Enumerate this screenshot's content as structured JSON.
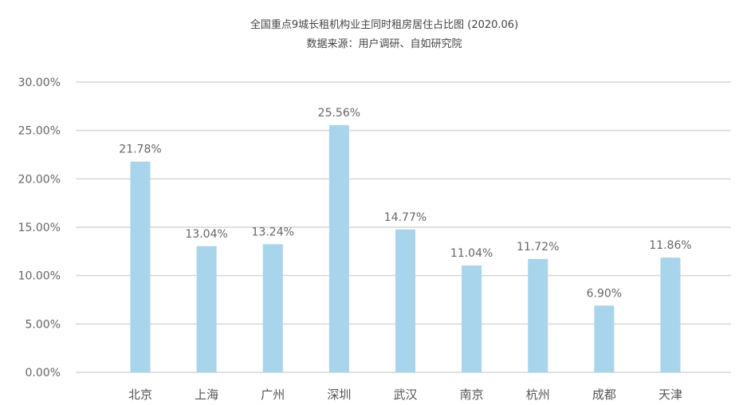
{
  "chart_data": {
    "type": "bar",
    "title": "全国重点9城长租机构业主同时租房居住占比图 (2020.06)",
    "subtitle": "数据来源：用户调研、自如研究院",
    "categories": [
      "北京",
      "上海",
      "广州",
      "深圳",
      "武汉",
      "南京",
      "杭州",
      "成都",
      "天津"
    ],
    "values": [
      21.78,
      13.04,
      13.24,
      25.56,
      14.77,
      11.04,
      11.72,
      6.9,
      11.86
    ],
    "data_labels": [
      "21.78%",
      "13.04%",
      "13.24%",
      "25.56%",
      "14.77%",
      "11.04%",
      "11.72%",
      "6.90%",
      "11.86%"
    ],
    "ylim": [
      0,
      30
    ],
    "yticks": [
      0,
      5,
      10,
      15,
      20,
      25,
      30
    ],
    "ytick_labels": [
      "0.00%",
      "5.00%",
      "10.00%",
      "15.00%",
      "20.00%",
      "25.00%",
      "30.00%"
    ],
    "grid": true,
    "bar_color": "#a8d4ec",
    "grid_color": "#d6d6d6",
    "xlabel": "",
    "ylabel": ""
  }
}
